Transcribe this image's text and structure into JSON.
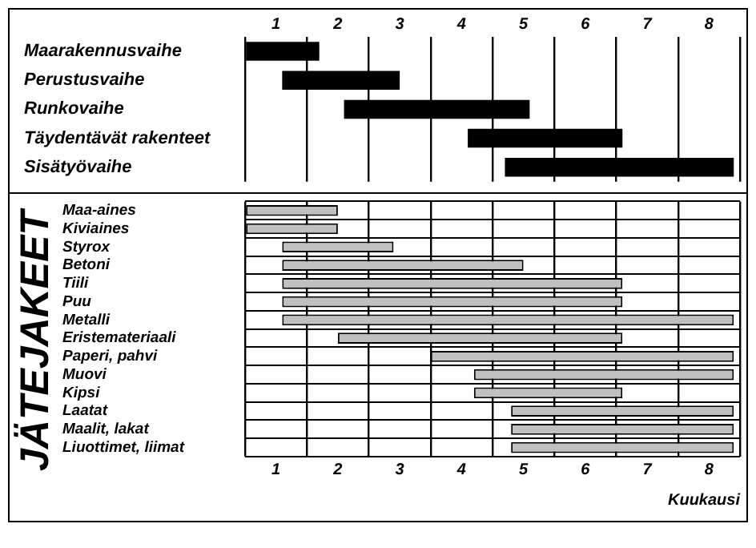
{
  "chart_data": [
    {
      "type": "bar",
      "orientation": "horizontal",
      "categories": [
        "Maarakennusvaihe",
        "Perustusvaihe",
        "Runkovaihe",
        "Täydentävät rakenteet",
        "Sisätyövaihe"
      ],
      "base": [
        0,
        0.6,
        1.6,
        3.6,
        4.2
      ],
      "values": [
        1.2,
        1.9,
        3.0,
        2.5,
        3.7
      ],
      "color": "#000000",
      "xlim": [
        0,
        8
      ],
      "xticks": [
        {
          "value": 0,
          "label": null
        },
        {
          "value": 0.5,
          "label": "1"
        },
        {
          "value": 1,
          "label": null
        },
        {
          "value": 1.5,
          "label": "2"
        },
        {
          "value": 2,
          "label": null
        },
        {
          "value": 2.5,
          "label": "3"
        },
        {
          "value": 3,
          "label": null
        },
        {
          "value": 3.5,
          "label": "4"
        },
        {
          "value": 4,
          "label": null
        },
        {
          "value": 4.5,
          "label": "5"
        },
        {
          "value": 5,
          "label": null
        },
        {
          "value": 5.5,
          "label": "6"
        },
        {
          "value": 6,
          "label": null
        },
        {
          "value": 6.5,
          "label": "7"
        },
        {
          "value": 7,
          "label": null
        },
        {
          "value": 7.5,
          "label": "8"
        },
        {
          "value": 8,
          "label": null
        }
      ],
      "grid": "x",
      "legend": false
    },
    {
      "type": "bar",
      "orientation": "horizontal",
      "ylabel": "JÄTEJAKEET",
      "xlabel": "Kuukausi",
      "categories": [
        "Maa-aines",
        "Kiviaines",
        "Styrox",
        "Betoni",
        "Tiili",
        "Puu",
        "Metalli",
        "Eristemateriaali",
        "Paperi, pahvi",
        "Muovi",
        "Kipsi",
        "Laatat",
        "Maalit, lakat",
        "Liuottimet, liimat"
      ],
      "base": [
        0,
        0,
        0.6,
        0.6,
        0.6,
        0.6,
        0.6,
        1.5,
        3.0,
        3.7,
        3.7,
        4.3,
        4.3,
        4.3
      ],
      "values": [
        1.5,
        1.5,
        1.8,
        3.9,
        5.5,
        5.5,
        7.3,
        4.6,
        4.9,
        4.2,
        2.4,
        3.6,
        3.6,
        3.6
      ],
      "color": "#c0c0c0",
      "xlim": [
        0,
        8
      ],
      "xticks": [
        {
          "value": 0,
          "label": null
        },
        {
          "value": 0.5,
          "label": "1"
        },
        {
          "value": 1,
          "label": null
        },
        {
          "value": 1.5,
          "label": "2"
        },
        {
          "value": 2,
          "label": null
        },
        {
          "value": 2.5,
          "label": "3"
        },
        {
          "value": 3,
          "label": null
        },
        {
          "value": 3.5,
          "label": "4"
        },
        {
          "value": 4,
          "label": null
        },
        {
          "value": 4.5,
          "label": "5"
        },
        {
          "value": 5,
          "label": null
        },
        {
          "value": 5.5,
          "label": "6"
        },
        {
          "value": 6,
          "label": null
        },
        {
          "value": 6.5,
          "label": "7"
        },
        {
          "value": 7,
          "label": null
        },
        {
          "value": 7.5,
          "label": "8"
        },
        {
          "value": 8,
          "label": null
        }
      ],
      "grid": true,
      "legend": false
    }
  ]
}
